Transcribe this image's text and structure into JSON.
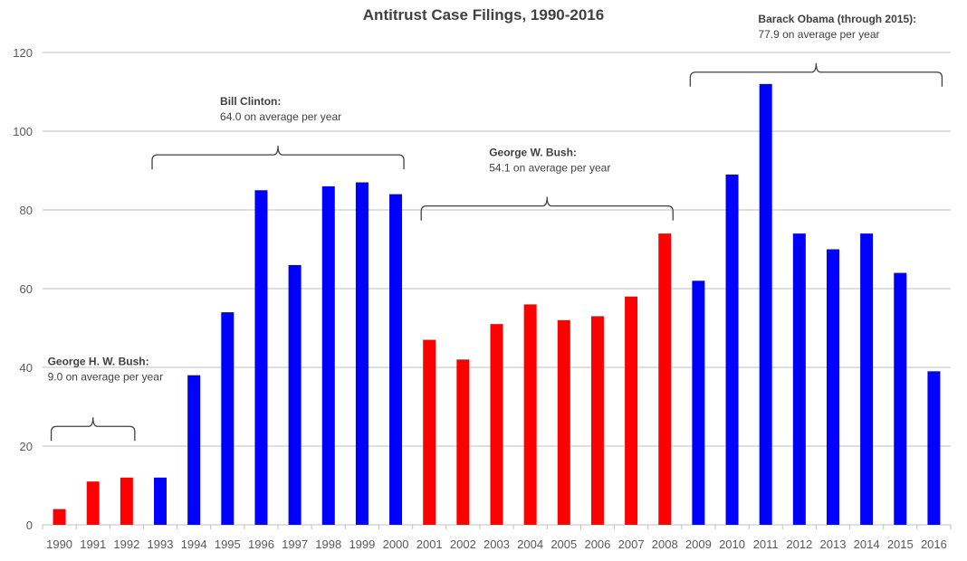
{
  "chart_data": {
    "type": "bar",
    "title": "Antitrust Case Filings, 1990-2016",
    "xlabel": "",
    "ylabel": "",
    "ylim": [
      0,
      120
    ],
    "yticks": [
      0,
      20,
      40,
      60,
      80,
      100,
      120
    ],
    "grid": true,
    "categories": [
      "1990",
      "1991",
      "1992",
      "1993",
      "1994",
      "1995",
      "1996",
      "1997",
      "1998",
      "1999",
      "2000",
      "2001",
      "2002",
      "2003",
      "2004",
      "2005",
      "2006",
      "2007",
      "2008",
      "2009",
      "2010",
      "2011",
      "2012",
      "2013",
      "2014",
      "2015",
      "2016"
    ],
    "values": [
      4,
      11,
      12,
      12,
      38,
      54,
      85,
      66,
      86,
      87,
      84,
      47,
      42,
      51,
      56,
      52,
      53,
      58,
      74,
      62,
      89,
      112,
      74,
      70,
      74,
      64,
      39
    ],
    "bar_party": [
      "R",
      "R",
      "R",
      "D",
      "D",
      "D",
      "D",
      "D",
      "D",
      "D",
      "D",
      "R",
      "R",
      "R",
      "R",
      "R",
      "R",
      "R",
      "R",
      "D",
      "D",
      "D",
      "D",
      "D",
      "D",
      "D",
      "D"
    ],
    "colors": {
      "R": "#ff0000",
      "D": "#0000ff"
    },
    "annotations": [
      {
        "name": "George H. W. Bush:",
        "text": "9.0 on average per year",
        "from": "1990",
        "to": "1992",
        "level": 25
      },
      {
        "name": "Bill Clinton:",
        "text": "64.0 on average per year",
        "from": "1993",
        "to": "2000",
        "level": 94
      },
      {
        "name": "George W. Bush:",
        "text": "54.1 on average per year",
        "from": "2001",
        "to": "2008",
        "level": 81
      },
      {
        "name": "Barack Obama (through 2015):",
        "text": "77.9 on average per year",
        "from": "2009",
        "to": "2016",
        "level": 115
      }
    ]
  }
}
